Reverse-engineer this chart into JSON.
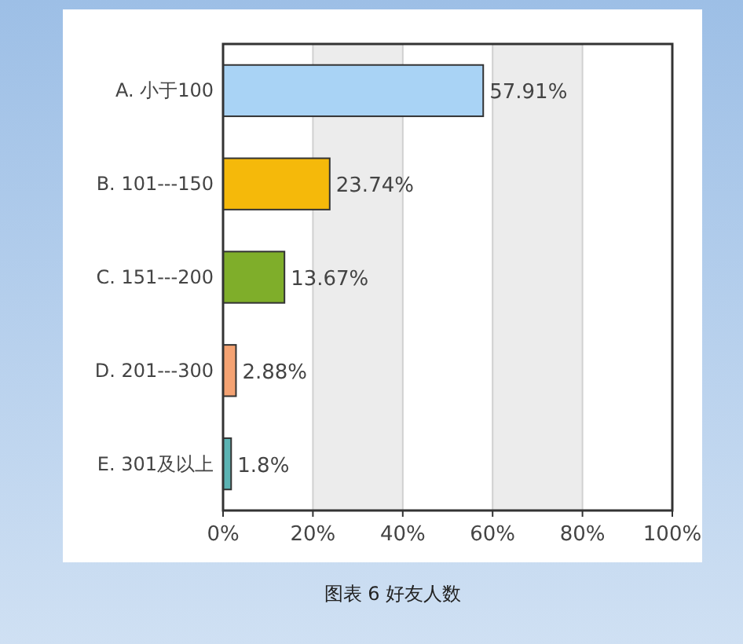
{
  "chart_data": {
    "type": "bar",
    "orientation": "horizontal",
    "categories": [
      "A. 小于100",
      "B. 101---150",
      "C. 151---200",
      "D. 201---300",
      "E. 301及以上"
    ],
    "values": [
      57.91,
      23.74,
      13.67,
      2.88,
      1.8
    ],
    "colors": [
      "#a9d3f5",
      "#f5b90a",
      "#7fae2a",
      "#f4a272",
      "#5bb3b3"
    ],
    "value_labels": [
      "57.91%",
      "23.74%",
      "13.67%",
      "2.88%",
      "1.8%"
    ],
    "xlim": [
      0,
      100
    ],
    "xticks": [
      {
        "value": 0,
        "label": "0%"
      },
      {
        "value": 20,
        "label": "20%"
      },
      {
        "value": 40,
        "label": "40%"
      },
      {
        "value": 60,
        "label": "60%"
      },
      {
        "value": 80,
        "label": "80%"
      },
      {
        "value": 100,
        "label": "100%"
      }
    ],
    "bands": [
      {
        "axis": "x",
        "from": 20,
        "to": 40,
        "color": "#ececec"
      },
      {
        "axis": "x",
        "from": 60,
        "to": 80,
        "color": "#ececec"
      }
    ],
    "grid": "x",
    "annotations": [
      "图表 6 好友人数"
    ]
  }
}
